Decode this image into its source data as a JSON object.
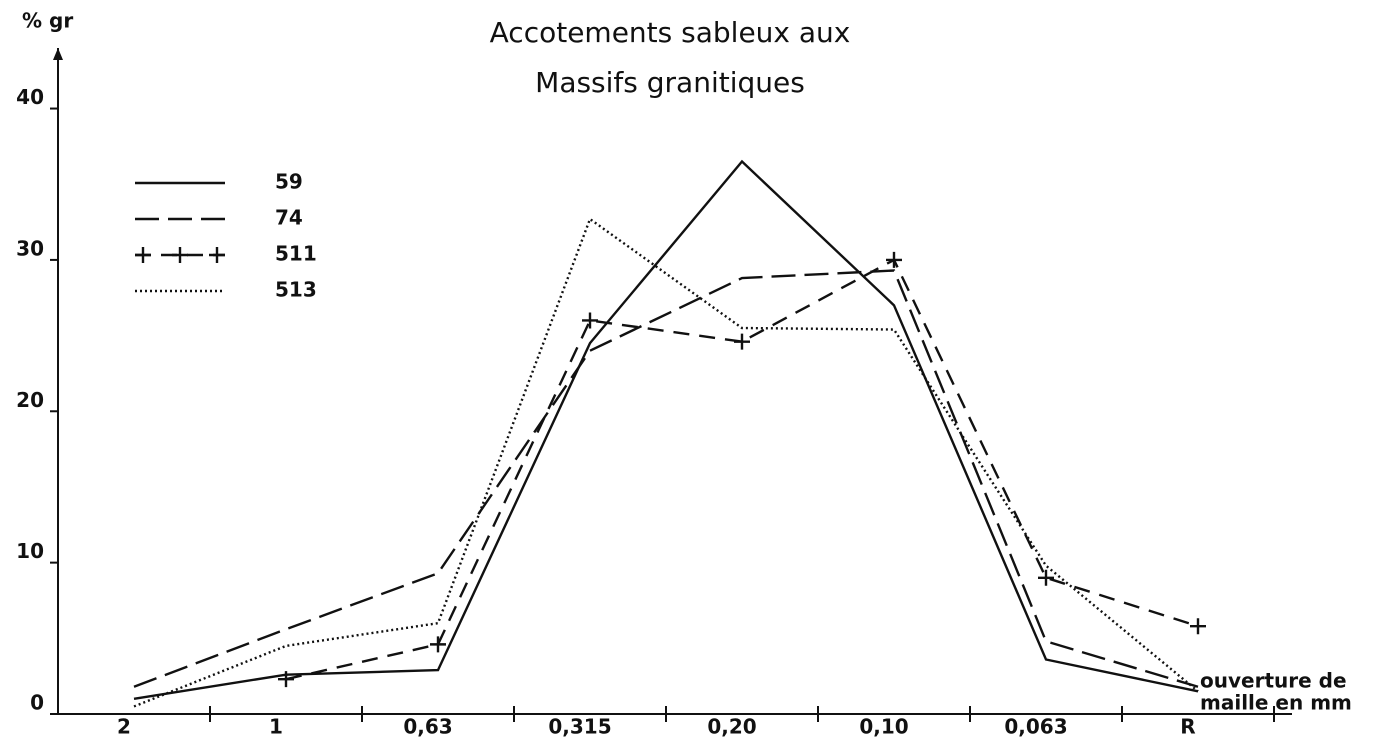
{
  "chart_data": {
    "type": "line",
    "title_lines": [
      "Accotements sableux aux",
      "Massifs granitiques"
    ],
    "y_label": "% gr",
    "x_label_lines": [
      "ouverture de",
      "maille en mm"
    ],
    "categories": [
      "2",
      "1",
      "0,63",
      "0,315",
      "0,20",
      "0,10",
      "0,063",
      "R"
    ],
    "ylim": [
      0,
      44
    ],
    "yticks": [
      0,
      10,
      20,
      30,
      40
    ],
    "series": [
      {
        "name": "59",
        "style": "solid",
        "color": "#111111",
        "values": [
          1.0,
          2.6,
          2.9,
          24.5,
          36.5,
          27.0,
          3.6,
          1.5
        ]
      },
      {
        "name": "74",
        "style": "dashed",
        "color": "#111111",
        "values": [
          1.8,
          5.6,
          9.3,
          24.0,
          28.8,
          29.3,
          4.8,
          1.8
        ]
      },
      {
        "name": "511",
        "style": "dash-plus",
        "color": "#111111",
        "values": [
          null,
          2.3,
          4.6,
          26.0,
          24.6,
          30.0,
          9.0,
          5.8
        ]
      },
      {
        "name": "513",
        "style": "dotted",
        "color": "#111111",
        "values": [
          0.5,
          4.5,
          6.0,
          32.7,
          25.5,
          25.4,
          9.8,
          1.5
        ]
      }
    ]
  }
}
